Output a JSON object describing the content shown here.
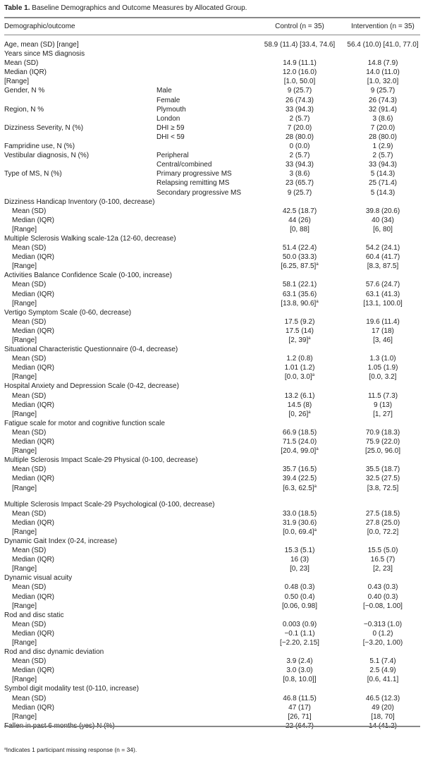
{
  "table": {
    "label": "Table 1.",
    "caption": "Baseline Demographics and Outcome Measures by Allocated Group.",
    "headers": {
      "outcome": "Demographic/outcome",
      "control": "Control (n = 35)",
      "intervention": "Intervention (n = 35)"
    },
    "rows": [
      {
        "label": "Age, mean (SD) [range]",
        "sub": "",
        "control": "58.9 (11.4) [33.4, 74.6]",
        "intervention": "56.4 (10.0) [41.0, 77.0]"
      },
      {
        "label": "Years since MS diagnosis",
        "sub": "",
        "control": "",
        "intervention": ""
      },
      {
        "label": "Mean (SD)",
        "sub": "",
        "control": "14.9 (11.1)",
        "intervention": "14.8 (7.9)"
      },
      {
        "label": "Median (IQR)",
        "sub": "",
        "control": "12.0 (16.0)",
        "intervention": "14.0 (11.0)"
      },
      {
        "label": "[Range]",
        "sub": "",
        "control": "[1.0, 50.0]",
        "intervention": "[1.0, 32.0]"
      },
      {
        "label": "Gender, N %",
        "sub": "Male",
        "control": "9 (25.7)",
        "intervention": "9 (25.7)"
      },
      {
        "label": "",
        "sub": "Female",
        "control": "26 (74.3)",
        "intervention": "26 (74.3)"
      },
      {
        "label": "Region, N %",
        "sub": "Plymouth",
        "control": "33 (94.3)",
        "intervention": "32 (91.4)"
      },
      {
        "label": "",
        "sub": "London",
        "control": "2 (5.7)",
        "intervention": "3 (8.6)"
      },
      {
        "label": "Dizziness Severity, N (%)",
        "sub": "DHI ≥ 59",
        "control": "7 (20.0)",
        "intervention": "7 (20.0)"
      },
      {
        "label": "",
        "sub": "DHI < 59",
        "control": "28 (80.0)",
        "intervention": "28 (80.0)"
      },
      {
        "label": "Fampridine use, N (%)",
        "sub": "",
        "control": "0 (0.0)",
        "intervention": "1 (2.9)"
      },
      {
        "label": "Vestibular diagnosis, N (%)",
        "sub": "Peripheral",
        "control": "2 (5.7)",
        "intervention": "2 (5.7)"
      },
      {
        "label": "",
        "sub": "Central/combined",
        "control": "33 (94.3)",
        "intervention": "33 (94.3)"
      },
      {
        "label": "Type of MS, N (%)",
        "sub": "Primary progressive MS",
        "control": "3 (8.6)",
        "intervention": "5 (14.3)"
      },
      {
        "label": "",
        "sub": "Relapsing remitting MS",
        "control": "23 (65.7)",
        "intervention": "25 (71.4)"
      },
      {
        "label": "",
        "sub": "Secondary progressive MS",
        "control": "9 (25.7)",
        "intervention": "5 (14.3)"
      },
      {
        "label": "Dizziness Handicap Inventory (0-100, decrease)",
        "sub": "",
        "control": "",
        "intervention": ""
      },
      {
        "label": "Mean (SD)",
        "indent": true,
        "control": "42.5 (18.7)",
        "intervention": "39.8 (20.6)"
      },
      {
        "label": "Median (IQR)",
        "indent": true,
        "control": "44 (26)",
        "intervention": "40 (34)"
      },
      {
        "label": "[Range]",
        "indent": true,
        "control": "[0, 88]",
        "intervention": "[6, 80]"
      },
      {
        "label": "Multiple Sclerosis Walking scale-12a (12-60, decrease)",
        "control": "",
        "intervention": ""
      },
      {
        "label": "Mean (SD)",
        "indent": true,
        "control": "51.4 (22.4)",
        "intervention": "54.2 (24.1)"
      },
      {
        "label": "Median (IQR)",
        "indent": true,
        "control": "50.0 (33.3)",
        "intervention": "60.4 (41.7)"
      },
      {
        "label": "[Range]",
        "indent": true,
        "control": "[6.25, 87.5]",
        "control_note": "a",
        "intervention": "[8.3, 87.5]"
      },
      {
        "label": "Activities Balance Confidence Scale (0-100, increase)",
        "control": "",
        "intervention": ""
      },
      {
        "label": "Mean (SD)",
        "indent": true,
        "control": "58.1 (22.1)",
        "intervention": "57.6 (24.7)"
      },
      {
        "label": "Median (IQR)",
        "indent": true,
        "control": "63.1 (35.6)",
        "intervention": "63.1 (41.3)"
      },
      {
        "label": "[Range]",
        "indent": true,
        "control": "[13.8, 90.6]",
        "control_note": "a",
        "intervention": "[13.1, 100.0]"
      },
      {
        "label": "Vertigo Symptom Scale (0-60, decrease)",
        "control": "",
        "intervention": ""
      },
      {
        "label": "Mean (SD)",
        "indent": true,
        "control": "17.5 (9.2)",
        "intervention": "19.6 (11.4)"
      },
      {
        "label": "Median (IQR)",
        "indent": true,
        "control": "17.5 (14)",
        "intervention": "17 (18)"
      },
      {
        "label": "[Range]",
        "indent": true,
        "control": "[2, 39]",
        "control_note": "a",
        "intervention": "[3, 46]"
      },
      {
        "label": "Situational Characteristic Questionnaire (0-4, decrease)",
        "control": "",
        "intervention": ""
      },
      {
        "label": "Mean (SD)",
        "indent": true,
        "control": "1.2 (0.8)",
        "intervention": "1.3 (1.0)"
      },
      {
        "label": "Median (IQR)",
        "indent": true,
        "control": "1.01 (1.2)",
        "intervention": "1.05 (1.9)"
      },
      {
        "label": "[Range]",
        "indent": true,
        "control": "[0.0, 3.0]",
        "control_note": "a",
        "intervention": "[0.0, 3.2]"
      },
      {
        "label": "Hospital Anxiety and Depression Scale (0-42, decrease)",
        "control": "",
        "intervention": ""
      },
      {
        "label": "Mean (SD)",
        "indent": true,
        "control": "13.2 (6.1)",
        "intervention": "11.5 (7.3)"
      },
      {
        "label": "Median (IQR)",
        "indent": true,
        "control": "14.5 (8)",
        "intervention": "9 (13)"
      },
      {
        "label": "[Range]",
        "indent": true,
        "control": "[0, 26]",
        "control_note": "a",
        "intervention": "[1, 27]"
      },
      {
        "label": "Fatigue scale for motor and cognitive function scale",
        "control": "",
        "intervention": ""
      },
      {
        "label": "Mean (SD)",
        "indent": true,
        "control": "66.9 (18.5)",
        "intervention": "70.9 (18.3)"
      },
      {
        "label": "Median (IQR)",
        "indent": true,
        "control": "71.5 (24.0)",
        "intervention": "75.9 (22.0)"
      },
      {
        "label": "[Range]",
        "indent": true,
        "control": "[20.4, 99.0]",
        "control_note": "a",
        "intervention": "[25.0, 96.0]"
      },
      {
        "label": "Multiple Sclerosis Impact Scale-29 Physical (0-100, decrease)",
        "control": "",
        "intervention": ""
      },
      {
        "label": "Mean (SD)",
        "indent": true,
        "control": "35.7 (16.5)",
        "intervention": "35.5 (18.7)"
      },
      {
        "label": "Median (IQR)",
        "indent": true,
        "control": "39.4 (22.5)",
        "intervention": "32.5 (27.5)"
      },
      {
        "label": "[Range]",
        "indent": true,
        "control": "[6.3, 62.5]",
        "control_note": "a",
        "intervention": "[3.8, 72.5]"
      },
      {
        "label": "Multiple Sclerosis Impact Scale-29 Psychological (0-100, decrease)",
        "gap": true,
        "control": "",
        "intervention": ""
      },
      {
        "label": "Mean (SD)",
        "indent": true,
        "control": "33.0 (18.5)",
        "intervention": "27.5 (18.5)"
      },
      {
        "label": "Median (IQR)",
        "indent": true,
        "control": "31.9 (30.6)",
        "intervention": "27.8 (25.0)"
      },
      {
        "label": "[Range]",
        "indent": true,
        "control": "[0.0, 69.4]",
        "control_note": "a",
        "intervention": "[0.0, 72.2]"
      },
      {
        "label": "Dynamic Gait Index (0-24, increase)",
        "control": "",
        "intervention": ""
      },
      {
        "label": "Mean (SD)",
        "indent": true,
        "control": "15.3 (5.1)",
        "intervention": "15.5 (5.0)"
      },
      {
        "label": "Median (IQR)",
        "indent": true,
        "control": "16 (3)",
        "intervention": "16.5 (7)"
      },
      {
        "label": "[Range]",
        "indent": true,
        "control": "[0, 23]",
        "intervention": "[2, 23]"
      },
      {
        "label": "Dynamic visual acuity",
        "control": "",
        "intervention": ""
      },
      {
        "label": "Mean (SD)",
        "indent": true,
        "control": "0.48 (0.3)",
        "intervention": "0.43 (0.3)"
      },
      {
        "label": "Median (IQR)",
        "indent": true,
        "control": "0.50 (0.4)",
        "intervention": "0.40 (0.3)"
      },
      {
        "label": "[Range]",
        "indent": true,
        "control": "[0.06, 0.98]",
        "intervention": "[−0.08, 1.00]"
      },
      {
        "label": "Rod and disc static",
        "control": "",
        "intervention": ""
      },
      {
        "label": "Mean (SD)",
        "indent": true,
        "control": "0.003 (0.9)",
        "intervention": "−0.313 (1.0)"
      },
      {
        "label": "Median (IQR)",
        "indent": true,
        "control": "−0.1 (1.1)",
        "intervention": "0 (1.2)"
      },
      {
        "label": "[Range]",
        "indent": true,
        "control": "[−2.20, 2.15]",
        "intervention": "[−3.20, 1.00)"
      },
      {
        "label": "Rod and disc dynamic deviation",
        "control": "",
        "intervention": ""
      },
      {
        "label": "Mean (SD)",
        "indent": true,
        "control": "3.9 (2.4)",
        "intervention": "5.1 (7.4)"
      },
      {
        "label": "Median (IQR)",
        "indent": true,
        "control": "3.0 (3.0)",
        "intervention": "2.5 (4.9)"
      },
      {
        "label": "[Range]",
        "indent": true,
        "control": "[0.8, 10.0]]",
        "intervention": "[0.6, 41.1]"
      },
      {
        "label": "Symbol digit modality test (0-110, increase)",
        "control": "",
        "intervention": ""
      },
      {
        "label": "Mean (SD)",
        "indent": true,
        "control": "46.8 (11.5)",
        "intervention": "46.5 (12.3)"
      },
      {
        "label": "Median (IQR)",
        "indent": true,
        "control": "47 (17)",
        "intervention": "49 (20)"
      },
      {
        "label": "[Range]",
        "indent": true,
        "control": "[26, 71]",
        "intervention": "[18, 70]"
      },
      {
        "label": "Fallen in past 6 months (yes) N (%)",
        "control": "22 (64.7)",
        "intervention": "14 (41.2)"
      }
    ],
    "footnote": {
      "mark": "a",
      "text": "Indicates 1 participant missing response (n = 34)."
    }
  }
}
